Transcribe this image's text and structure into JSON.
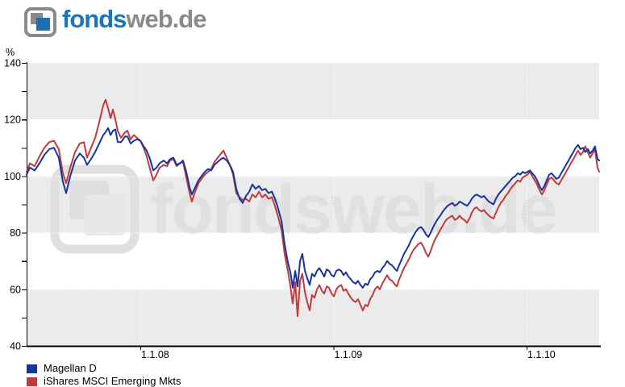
{
  "brand": {
    "name_primary": "fonds",
    "name_secondary": "web.de",
    "icon": "fondsweb-squares-icon",
    "color_primary": "#1b75b9",
    "color_secondary": "#8a8a8a",
    "icon_blue": "#1c6fb2"
  },
  "watermark": {
    "text": "fondsweb.de",
    "color": "#e0e0e0",
    "icon": "fondsweb-squares-icon"
  },
  "chart_data": {
    "type": "line",
    "unit_label": "%",
    "ylim": [
      40,
      140
    ],
    "y_ticks": [
      40,
      60,
      80,
      100,
      120,
      140
    ],
    "y_minor_ticks": [
      50,
      70,
      90,
      110,
      130
    ],
    "x_tick_labels": [
      "1.1.08",
      "1.1.09",
      "1.1.10"
    ],
    "x_tick_years": [
      2008,
      2009,
      2010
    ],
    "xlim_years": [
      2007.411,
      2010.376
    ],
    "grid": "dotted-white-on-band-boundaries",
    "gridline_values": [
      60,
      80,
      100,
      120
    ],
    "band_color": "#ebebeb",
    "bands_gray": [
      [
        120,
        140
      ],
      [
        80,
        100
      ],
      [
        40,
        60
      ]
    ],
    "legend_position": "bottom-left",
    "t": [
      2007.411,
      2007.428,
      2007.453,
      2007.478,
      2007.503,
      2007.528,
      2007.553,
      2007.578,
      2007.599,
      2007.616,
      2007.637,
      2007.662,
      2007.687,
      2007.708,
      2007.724,
      2007.745,
      2007.766,
      2007.787,
      2007.808,
      2007.82,
      2007.833,
      2007.846,
      2007.858,
      2007.871,
      2007.883,
      2007.9,
      2007.921,
      2007.933,
      2007.95,
      2007.967,
      2007.983,
      2008.0,
      2008.017,
      2008.033,
      2008.05,
      2008.067,
      2008.084,
      2008.1,
      2008.121,
      2008.138,
      2008.154,
      2008.171,
      2008.188,
      2008.205,
      2008.221,
      2008.238,
      2008.255,
      2008.267,
      2008.284,
      2008.301,
      2008.317,
      2008.334,
      2008.351,
      2008.367,
      2008.384,
      2008.401,
      2008.418,
      2008.43,
      2008.447,
      2008.463,
      2008.48,
      2008.497,
      2008.514,
      2008.53,
      2008.547,
      2008.564,
      2008.58,
      2008.597,
      2008.614,
      2008.63,
      2008.647,
      2008.664,
      2008.681,
      2008.697,
      2008.714,
      2008.731,
      2008.747,
      2008.764,
      2008.777,
      2008.789,
      2008.802,
      2008.814,
      2008.827,
      2008.839,
      2008.852,
      2008.864,
      2008.877,
      2008.889,
      2008.902,
      2008.915,
      2008.927,
      2008.94,
      2008.952,
      2008.965,
      2008.977,
      2008.99,
      2009.002,
      2009.015,
      2009.027,
      2009.04,
      2009.052,
      2009.065,
      2009.077,
      2009.09,
      2009.102,
      2009.115,
      2009.127,
      2009.14,
      2009.152,
      2009.165,
      2009.177,
      2009.19,
      2009.203,
      2009.215,
      2009.228,
      2009.24,
      2009.253,
      2009.265,
      2009.278,
      2009.29,
      2009.303,
      2009.315,
      2009.328,
      2009.34,
      2009.353,
      2009.365,
      2009.378,
      2009.39,
      2009.403,
      2009.415,
      2009.428,
      2009.44,
      2009.453,
      2009.466,
      2009.478,
      2009.491,
      2009.503,
      2009.516,
      2009.528,
      2009.541,
      2009.553,
      2009.566,
      2009.578,
      2009.591,
      2009.603,
      2009.616,
      2009.628,
      2009.641,
      2009.653,
      2009.666,
      2009.678,
      2009.691,
      2009.704,
      2009.716,
      2009.729,
      2009.741,
      2009.754,
      2009.766,
      2009.779,
      2009.791,
      2009.804,
      2009.816,
      2009.829,
      2009.841,
      2009.854,
      2009.866,
      2009.879,
      2009.891,
      2009.904,
      2009.917,
      2009.929,
      2009.942,
      2009.954,
      2009.967,
      2009.979,
      2009.992,
      2010.004,
      2010.017,
      2010.029,
      2010.042,
      2010.054,
      2010.067,
      2010.079,
      2010.092,
      2010.104,
      2010.117,
      2010.129,
      2010.142,
      2010.154,
      2010.167,
      2010.179,
      2010.192,
      2010.204,
      2010.217,
      2010.229,
      2010.242,
      2010.254,
      2010.267,
      2010.279,
      2010.292,
      2010.304,
      2010.317,
      2010.329,
      2010.342,
      2010.354,
      2010.367,
      2010.376
    ],
    "series": [
      {
        "name": "Magellan D",
        "color": "#17349c",
        "values": [
          100.5,
          103,
          102,
          104.5,
          107.5,
          109.5,
          110,
          106.5,
          98,
          94,
          100,
          105.5,
          108,
          106.5,
          104,
          106,
          108.5,
          111.5,
          114.5,
          115.5,
          117,
          114.5,
          116,
          116.5,
          112,
          112,
          114,
          114,
          111.5,
          112.5,
          113,
          112.5,
          110.5,
          109,
          106,
          102,
          103,
          104.5,
          105.5,
          104.5,
          106,
          106.5,
          104,
          104.5,
          105.5,
          101.5,
          96,
          93.5,
          96,
          98.5,
          100,
          101.5,
          102.5,
          102,
          104,
          105,
          106,
          106.5,
          105.5,
          104,
          101.5,
          95.5,
          92,
          90.5,
          93,
          94.5,
          97,
          95.5,
          96.5,
          95,
          95.5,
          94,
          94.5,
          92,
          88.5,
          84,
          76,
          69.5,
          66,
          60.5,
          66.5,
          61,
          70,
          72.5,
          66.5,
          64,
          61.5,
          65.5,
          64.5,
          66.5,
          67.5,
          66,
          64.5,
          67,
          66.5,
          65,
          64.5,
          66.5,
          67,
          66.5,
          65,
          66,
          64.5,
          63.5,
          62.5,
          62,
          63,
          61.5,
          60.5,
          62,
          61.5,
          63.5,
          64.5,
          66,
          66.5,
          66,
          67.5,
          68.5,
          70,
          69,
          68.5,
          67.5,
          66.5,
          68.5,
          70.5,
          72.5,
          74,
          75.5,
          77.5,
          79,
          80.5,
          81.5,
          82,
          81,
          79.5,
          78.5,
          80,
          82,
          83.5,
          85,
          86,
          87.5,
          88.5,
          89.5,
          90,
          90.5,
          89.5,
          90,
          91,
          90.5,
          90,
          89.5,
          90.5,
          92,
          93,
          93.5,
          93,
          92.5,
          93,
          92,
          91,
          90.5,
          90,
          92,
          93.5,
          94.5,
          95.5,
          96.5,
          97.5,
          98.5,
          99.5,
          100,
          101,
          100.5,
          101.5,
          101,
          101.5,
          102,
          101,
          100,
          98.5,
          96.5,
          95,
          96.5,
          98.5,
          100.5,
          101,
          100,
          99,
          99.5,
          101,
          102.5,
          104,
          105.5,
          107,
          108.5,
          110,
          111,
          109.5,
          110,
          108.5,
          109.5,
          108,
          109,
          110.5,
          106,
          105.5
        ]
      },
      {
        "name": "iShares MSCI Emerging Mkts",
        "color": "#c03b3c",
        "values": [
          101.5,
          104.5,
          103.5,
          107,
          110,
          112,
          112.5,
          109.5,
          101,
          97.5,
          103,
          108.5,
          111.5,
          112,
          106.5,
          110,
          113.5,
          119,
          125,
          127,
          124,
          120.5,
          123.5,
          120,
          116,
          113.5,
          115.5,
          116,
          113,
          114.5,
          113.5,
          112.5,
          110,
          107,
          102.5,
          98.5,
          100.5,
          103,
          104,
          103.5,
          105.5,
          106,
          103.5,
          104.5,
          105,
          99.5,
          94,
          91,
          94.5,
          97.5,
          99,
          100.5,
          101.5,
          102.5,
          105,
          106.5,
          108,
          109,
          106.5,
          104,
          100.5,
          94,
          92.5,
          91.5,
          92,
          91,
          93.5,
          92.5,
          94.5,
          92.5,
          93.5,
          92,
          92.5,
          89.5,
          85.5,
          81,
          72.5,
          66.5,
          61,
          55,
          62.5,
          50.5,
          63,
          65.5,
          59,
          55.5,
          52.5,
          58,
          57,
          60,
          61.5,
          59.5,
          58.5,
          61,
          60.5,
          58.5,
          57.5,
          60,
          61,
          61.5,
          59.5,
          60,
          58.5,
          57,
          56,
          55.5,
          56.5,
          54.5,
          52.5,
          54.5,
          54,
          56.5,
          58,
          60,
          61,
          60,
          62,
          63.5,
          65,
          63.5,
          63,
          62,
          61,
          63.5,
          65.5,
          67.5,
          69,
          70.5,
          72.5,
          74,
          75,
          76,
          76.5,
          75,
          73,
          71.5,
          73.5,
          76,
          78,
          79.5,
          81,
          82.5,
          84,
          85,
          85.5,
          86,
          84.5,
          85,
          86,
          85,
          84.5,
          83.5,
          85,
          87,
          88.5,
          89,
          88,
          87.5,
          88,
          87,
          86,
          85.5,
          85,
          87,
          89,
          90.5,
          91.5,
          93,
          94,
          95.5,
          96.5,
          97.5,
          98.5,
          98,
          99.5,
          100,
          100.5,
          101.5,
          100,
          98.5,
          97,
          95,
          93.5,
          95,
          97,
          99,
          99.5,
          98.5,
          97.5,
          97,
          98.5,
          100,
          101.5,
          103,
          104.5,
          106,
          107.5,
          109,
          107.5,
          108.5,
          110.5,
          108.5,
          106.5,
          108,
          109.5,
          103,
          101.5
        ]
      }
    ]
  }
}
